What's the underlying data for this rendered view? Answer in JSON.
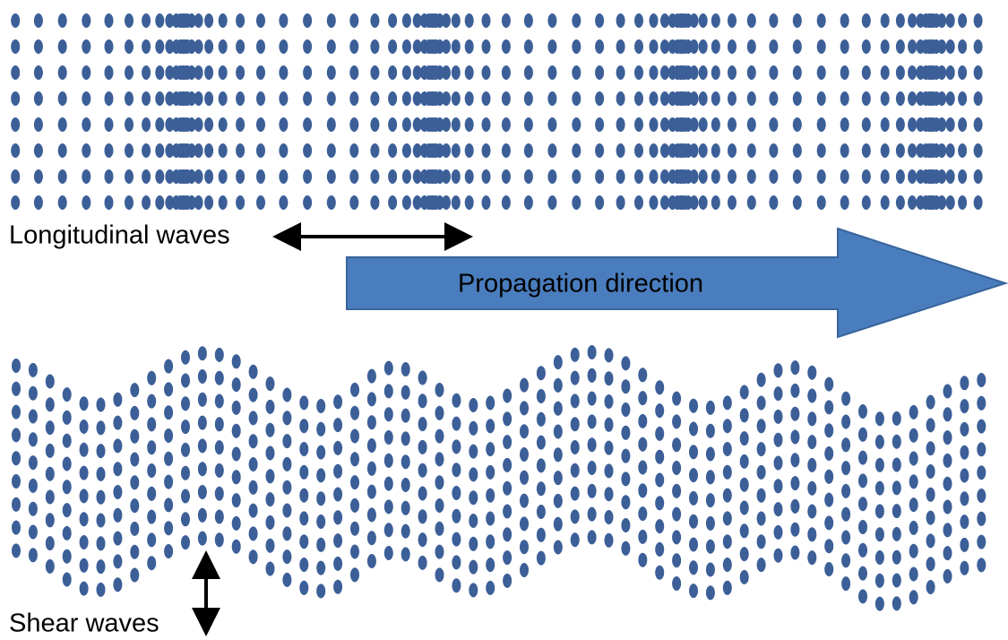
{
  "labels": {
    "longitudinal": "Longitudinal waves",
    "propagation": "Propagation direction",
    "shear": "Shear waves"
  }
}
